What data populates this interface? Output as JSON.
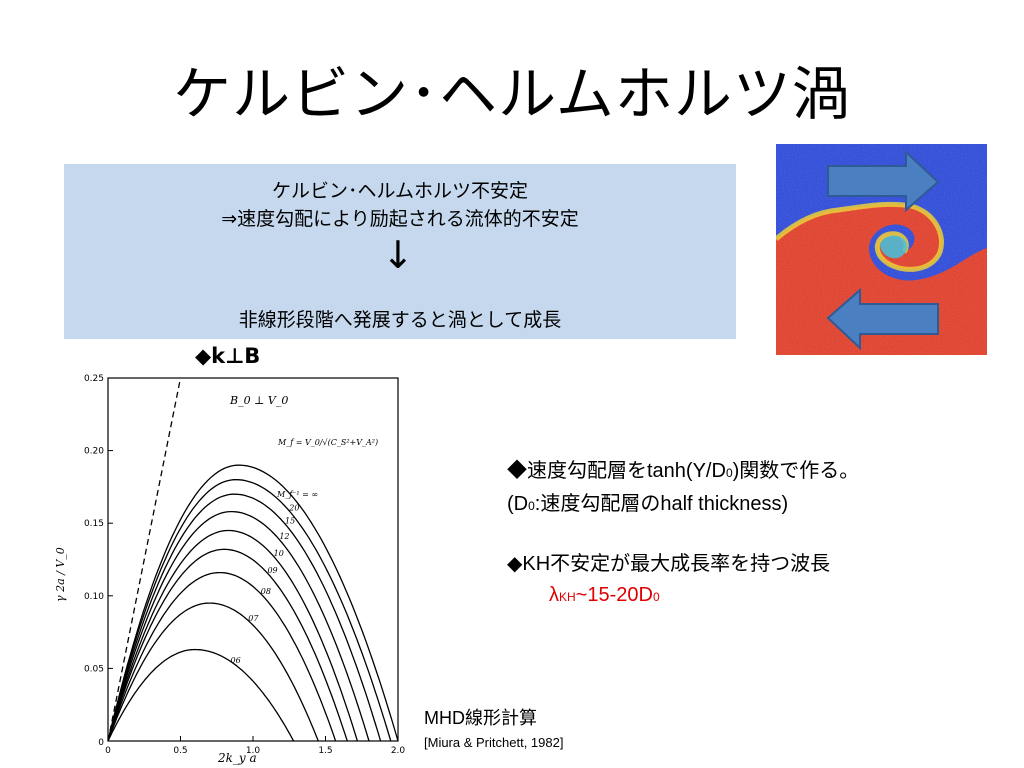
{
  "slide": {
    "title": "ケルビン･ヘルムホルツ渦"
  },
  "box": {
    "line1": "ケルビン･ヘルムホルツ不安定",
    "line2": "⇒速度勾配により励起される流体的不安定",
    "arrow": "↓",
    "line3": "非線形段階へ発展すると渦として成長"
  },
  "figure_label": "◆k⊥B",
  "bullets": {
    "b1_main": "◆速度勾配層をtanh(Y/D",
    "b1_sub": "0",
    "b1_end": ")関数で作る。",
    "b2_start": "(D",
    "b2_sub": "0",
    "b2_end": ":速度勾配層のhalf thickness)",
    "b3": "◆KH不安定が最大成長率を持つ波長",
    "b4_lambda": "λ",
    "b4_sub": "KH",
    "b4_mid": "~15-20D",
    "b4_sub2": "0"
  },
  "citation": {
    "line1": "MHD線形計算",
    "line2": "[Miura & Pritchett, 1982]"
  },
  "colors": {
    "box_bg": "#c5d8ee",
    "red_text": "#e00000",
    "arrow_fill": "#4a7fc1",
    "kh_blue": "#1f3fe0",
    "kh_red": "#e8331c"
  },
  "chart_data": {
    "type": "line",
    "title": "",
    "xlabel": "2k_y a",
    "ylabel": "γ 2a / V_0",
    "xlim": [
      0,
      2.0
    ],
    "ylim": [
      0,
      0.25
    ],
    "x_ticks": [
      "0",
      "0.5",
      "1.0",
      "1.5",
      "2.0"
    ],
    "y_ticks": [
      "0.05",
      "0.10",
      "0.15",
      "0.20",
      "0.25"
    ],
    "annotations": [
      "B_0 ⊥ V_0",
      "M_f = V_0/√(C_S²+V_A²)",
      "M_f⁻¹ = ∞"
    ],
    "dashed_line": {
      "x": [
        0,
        0.5
      ],
      "y": [
        0,
        0.25
      ]
    },
    "series": [
      {
        "name": "∞",
        "peak_x": 0.9,
        "peak_y": 0.19,
        "cutoff": 2.0
      },
      {
        "name": "20",
        "peak_x": 0.88,
        "peak_y": 0.18,
        "cutoff": 1.95
      },
      {
        "name": "15",
        "peak_x": 0.87,
        "peak_y": 0.17,
        "cutoff": 1.88
      },
      {
        "name": "12",
        "peak_x": 0.85,
        "peak_y": 0.158,
        "cutoff": 1.8
      },
      {
        "name": "10",
        "peak_x": 0.83,
        "peak_y": 0.145,
        "cutoff": 1.72
      },
      {
        "name": "09",
        "peak_x": 0.8,
        "peak_y": 0.132,
        "cutoff": 1.65
      },
      {
        "name": "08",
        "peak_x": 0.77,
        "peak_y": 0.116,
        "cutoff": 1.57
      },
      {
        "name": "07",
        "peak_x": 0.7,
        "peak_y": 0.095,
        "cutoff": 1.45
      },
      {
        "name": "06",
        "peak_x": 0.6,
        "peak_y": 0.063,
        "cutoff": 1.28
      }
    ]
  }
}
